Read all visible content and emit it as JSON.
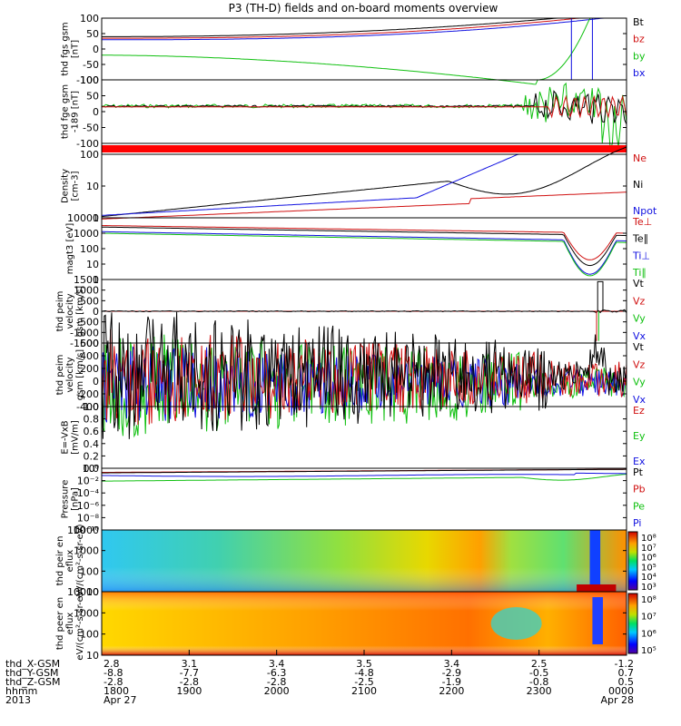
{
  "title": "P3 (TH-D) fields and on-board moments overview",
  "time_axis": {
    "x_tick_labels": [
      "1800",
      "1900",
      "2000",
      "2100",
      "2200",
      "2300",
      "0000"
    ],
    "row_labels": [
      "thd_X-GSM",
      "thd_Y-GSM",
      "thd_Z-GSM",
      "hhmm",
      "2013"
    ],
    "x_gsm": [
      "2.8",
      "3.1",
      "3.4",
      "3.5",
      "3.4",
      "2.5",
      "-1.2"
    ],
    "y_gsm": [
      "-8.8",
      "-7.7",
      "-6.3",
      "-4.8",
      "-2.9",
      "-0.5",
      "0.7"
    ],
    "z_gsm": [
      "-2.8",
      "-2.8",
      "-2.8",
      "-2.5",
      "-1.9",
      "-0.8",
      "0.5"
    ],
    "date_labels": [
      "Apr 27",
      "Apr 28"
    ]
  },
  "chart_data": [
    {
      "type": "line",
      "ylabel": "thd fgs gsm [nT]",
      "ylim": [
        -100,
        100
      ],
      "yticks": [
        "100",
        "50",
        "0",
        "-50",
        "-100"
      ],
      "legend": [
        "Bt",
        "bz",
        "by",
        "bx"
      ],
      "colors": [
        "#000000",
        "#d01010",
        "#10c010",
        "#1010e0"
      ]
    },
    {
      "type": "line",
      "ylabel": "thd fge gsm -189 [nT]",
      "ylim": [
        -150,
        100
      ],
      "yticks": [
        "100",
        "50",
        "0",
        "-50",
        "-100"
      ],
      "legend": [],
      "colors": [
        "#000000",
        "#d01010",
        "#10c010",
        "#1010e0"
      ]
    },
    {
      "type": "line",
      "ylabel": "",
      "legend": [],
      "colors": [
        "#ff0000"
      ]
    },
    {
      "type": "line",
      "ylabel": "Density [cm-3]",
      "scale": "log",
      "yticks": [
        "100",
        "10",
        "1"
      ],
      "legend": [
        "Ne",
        "Ni",
        "Npot"
      ],
      "colors": [
        "#d01010",
        "#000000",
        "#1010e0"
      ]
    },
    {
      "type": "line",
      "ylabel": "magt3 [eV]",
      "scale": "log",
      "yticks": [
        "10000",
        "1000",
        "100",
        "10",
        "1"
      ],
      "legend": [
        "Te⊥",
        "Te∥",
        "Ti⊥",
        "Ti∥"
      ],
      "colors": [
        "#d01010",
        "#000000",
        "#1010e0",
        "#10c010"
      ]
    },
    {
      "type": "line",
      "ylabel": "thd peim velocity gsm [km/s]",
      "ylim": [
        -1500,
        1500
      ],
      "yticks": [
        "1500",
        "1000",
        "500",
        "0",
        "-500",
        "-1000",
        "-1500"
      ],
      "legend": [
        "Vt",
        "Vz",
        "Vy",
        "Vx"
      ],
      "colors": [
        "#000000",
        "#d01010",
        "#10c010",
        "#1010e0"
      ]
    },
    {
      "type": "line",
      "ylabel": "thd peim velocity gsm [km/s]",
      "ylim": [
        -400,
        600
      ],
      "yticks": [
        "600",
        "400",
        "200",
        "0",
        "-200",
        "-400"
      ],
      "legend": [
        "Vt",
        "Vz",
        "Vy",
        "Vx"
      ],
      "colors": [
        "#000000",
        "#d01010",
        "#10c010",
        "#1010e0"
      ]
    },
    {
      "type": "line",
      "ylabel": "E=-VxB [mV/m]",
      "ylim": [
        0,
        1
      ],
      "yticks": [
        "1.0",
        "0.8",
        "0.6",
        "0.4",
        "0.2",
        "0.0"
      ],
      "legend": [
        "Ez",
        "Ey",
        "Ex"
      ],
      "colors": [
        "#d01010",
        "#10c010",
        "#1010e0"
      ]
    },
    {
      "type": "line",
      "ylabel": "Pressure [nPa]",
      "scale": "log",
      "yticks": [
        "10⁰",
        "10⁻²",
        "10⁻⁴",
        "10⁻⁶",
        "10⁻⁸",
        "10⁻¹⁰"
      ],
      "legend": [
        "Pt",
        "Pb",
        "Pe",
        "Pi"
      ],
      "colors": [
        "#000000",
        "#d01010",
        "#10c010",
        "#1010e0"
      ]
    },
    {
      "type": "heatmap",
      "ylabel": "thd peir en eflux eV/(cm²-s-sr-eV)",
      "scale": "log",
      "yticks": [
        "10000",
        "1000",
        "100",
        "10"
      ],
      "colorbar_ticks": [
        "10⁸",
        "10⁷",
        "10⁶",
        "10⁵",
        "10⁴",
        "10³"
      ]
    },
    {
      "type": "heatmap",
      "ylabel": "thd peer en eflux eV/(cm²-s-sr-eV)",
      "scale": "log",
      "yticks": [
        "10000",
        "1000",
        "100",
        "10"
      ],
      "colorbar_ticks": [
        "10⁸",
        "10⁷",
        "10⁶",
        "10⁵"
      ]
    }
  ]
}
